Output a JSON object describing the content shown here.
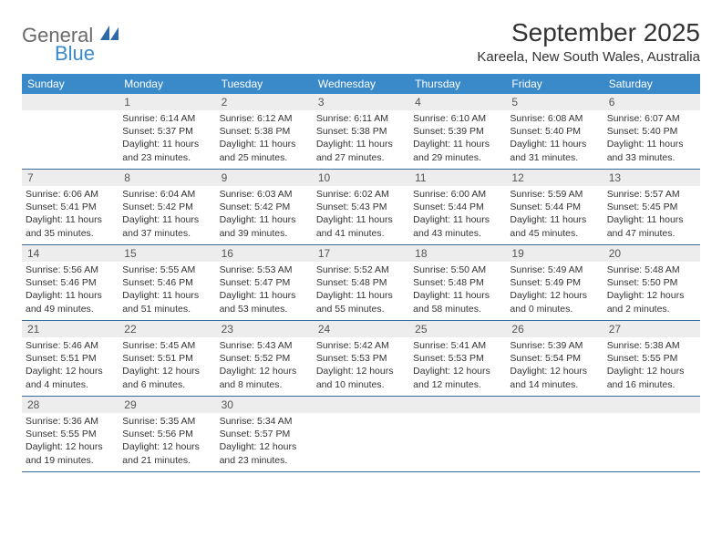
{
  "logo": {
    "word1": "General",
    "word2": "Blue"
  },
  "title": "September 2025",
  "location": "Kareela, New South Wales, Australia",
  "colors": {
    "header_bg": "#3a89c9",
    "header_text": "#ffffff",
    "daynum_bg": "#ededed",
    "daynum_text": "#555555",
    "body_text": "#333333",
    "week_divider": "#3a6a9a",
    "logo_gray": "#6a6a6a",
    "logo_blue": "#3a89c9"
  },
  "day_names": [
    "Sunday",
    "Monday",
    "Tuesday",
    "Wednesday",
    "Thursday",
    "Friday",
    "Saturday"
  ],
  "weeks": [
    [
      null,
      {
        "n": "1",
        "sunrise": "6:14 AM",
        "sunset": "5:37 PM",
        "daylight": "11 hours and 23 minutes."
      },
      {
        "n": "2",
        "sunrise": "6:12 AM",
        "sunset": "5:38 PM",
        "daylight": "11 hours and 25 minutes."
      },
      {
        "n": "3",
        "sunrise": "6:11 AM",
        "sunset": "5:38 PM",
        "daylight": "11 hours and 27 minutes."
      },
      {
        "n": "4",
        "sunrise": "6:10 AM",
        "sunset": "5:39 PM",
        "daylight": "11 hours and 29 minutes."
      },
      {
        "n": "5",
        "sunrise": "6:08 AM",
        "sunset": "5:40 PM",
        "daylight": "11 hours and 31 minutes."
      },
      {
        "n": "6",
        "sunrise": "6:07 AM",
        "sunset": "5:40 PM",
        "daylight": "11 hours and 33 minutes."
      }
    ],
    [
      {
        "n": "7",
        "sunrise": "6:06 AM",
        "sunset": "5:41 PM",
        "daylight": "11 hours and 35 minutes."
      },
      {
        "n": "8",
        "sunrise": "6:04 AM",
        "sunset": "5:42 PM",
        "daylight": "11 hours and 37 minutes."
      },
      {
        "n": "9",
        "sunrise": "6:03 AM",
        "sunset": "5:42 PM",
        "daylight": "11 hours and 39 minutes."
      },
      {
        "n": "10",
        "sunrise": "6:02 AM",
        "sunset": "5:43 PM",
        "daylight": "11 hours and 41 minutes."
      },
      {
        "n": "11",
        "sunrise": "6:00 AM",
        "sunset": "5:44 PM",
        "daylight": "11 hours and 43 minutes."
      },
      {
        "n": "12",
        "sunrise": "5:59 AM",
        "sunset": "5:44 PM",
        "daylight": "11 hours and 45 minutes."
      },
      {
        "n": "13",
        "sunrise": "5:57 AM",
        "sunset": "5:45 PM",
        "daylight": "11 hours and 47 minutes."
      }
    ],
    [
      {
        "n": "14",
        "sunrise": "5:56 AM",
        "sunset": "5:46 PM",
        "daylight": "11 hours and 49 minutes."
      },
      {
        "n": "15",
        "sunrise": "5:55 AM",
        "sunset": "5:46 PM",
        "daylight": "11 hours and 51 minutes."
      },
      {
        "n": "16",
        "sunrise": "5:53 AM",
        "sunset": "5:47 PM",
        "daylight": "11 hours and 53 minutes."
      },
      {
        "n": "17",
        "sunrise": "5:52 AM",
        "sunset": "5:48 PM",
        "daylight": "11 hours and 55 minutes."
      },
      {
        "n": "18",
        "sunrise": "5:50 AM",
        "sunset": "5:48 PM",
        "daylight": "11 hours and 58 minutes."
      },
      {
        "n": "19",
        "sunrise": "5:49 AM",
        "sunset": "5:49 PM",
        "daylight": "12 hours and 0 minutes."
      },
      {
        "n": "20",
        "sunrise": "5:48 AM",
        "sunset": "5:50 PM",
        "daylight": "12 hours and 2 minutes."
      }
    ],
    [
      {
        "n": "21",
        "sunrise": "5:46 AM",
        "sunset": "5:51 PM",
        "daylight": "12 hours and 4 minutes."
      },
      {
        "n": "22",
        "sunrise": "5:45 AM",
        "sunset": "5:51 PM",
        "daylight": "12 hours and 6 minutes."
      },
      {
        "n": "23",
        "sunrise": "5:43 AM",
        "sunset": "5:52 PM",
        "daylight": "12 hours and 8 minutes."
      },
      {
        "n": "24",
        "sunrise": "5:42 AM",
        "sunset": "5:53 PM",
        "daylight": "12 hours and 10 minutes."
      },
      {
        "n": "25",
        "sunrise": "5:41 AM",
        "sunset": "5:53 PM",
        "daylight": "12 hours and 12 minutes."
      },
      {
        "n": "26",
        "sunrise": "5:39 AM",
        "sunset": "5:54 PM",
        "daylight": "12 hours and 14 minutes."
      },
      {
        "n": "27",
        "sunrise": "5:38 AM",
        "sunset": "5:55 PM",
        "daylight": "12 hours and 16 minutes."
      }
    ],
    [
      {
        "n": "28",
        "sunrise": "5:36 AM",
        "sunset": "5:55 PM",
        "daylight": "12 hours and 19 minutes."
      },
      {
        "n": "29",
        "sunrise": "5:35 AM",
        "sunset": "5:56 PM",
        "daylight": "12 hours and 21 minutes."
      },
      {
        "n": "30",
        "sunrise": "5:34 AM",
        "sunset": "5:57 PM",
        "daylight": "12 hours and 23 minutes."
      },
      null,
      null,
      null,
      null
    ]
  ],
  "labels": {
    "sunrise": "Sunrise: ",
    "sunset": "Sunset: ",
    "daylight": "Daylight: "
  }
}
